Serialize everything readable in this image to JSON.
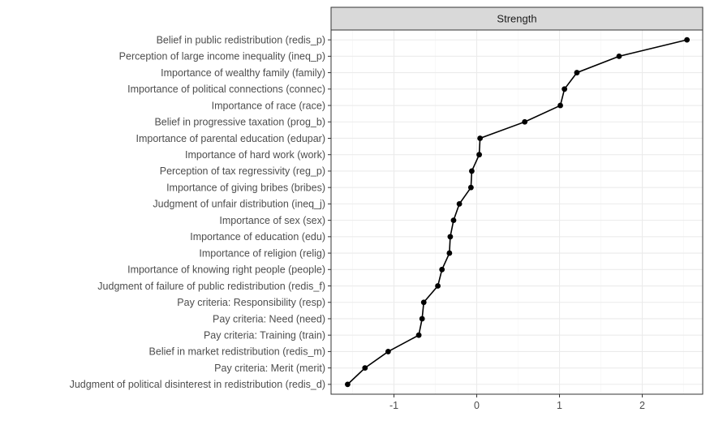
{
  "chart_data": {
    "type": "line",
    "facet_label": "Strength",
    "xlabel": "",
    "ylabel": "",
    "xlim": [
      -1.76,
      2.73
    ],
    "x_ticks": [
      -1,
      0,
      1,
      2
    ],
    "grid": true,
    "categories": [
      "Belief in public redistribution (redis_p)",
      "Perception of large income inequality (ineq_p)",
      "Importance of wealthy family (family)",
      "Importance of political connections (connec)",
      "Importance of race (race)",
      "Belief in progressive taxation (prog_b)",
      "Importance of parental education (edupar)",
      "Importance of hard work (work)",
      "Perception of tax regressivity (reg_p)",
      "Importance of giving bribes (bribes)",
      "Judgment of unfair distribution (ineq_j)",
      "Importance of sex (sex)",
      "Importance of education (edu)",
      "Importance of religion (relig)",
      "Importance of knowing right people (people)",
      "Judgment of failure of public redistribution (redis_f)",
      "Pay criteria: Responsibility (resp)",
      "Pay criteria: Need (need)",
      "Pay criteria: Training (train)",
      "Belief in market redistribution (redis_m)",
      "Pay criteria: Merit (merit)",
      "Judgment of political disinterest in redistribution (redis_d)"
    ],
    "values": [
      2.54,
      1.72,
      1.21,
      1.06,
      1.01,
      0.58,
      0.04,
      0.03,
      -0.06,
      -0.07,
      -0.21,
      -0.28,
      -0.32,
      -0.33,
      -0.42,
      -0.47,
      -0.64,
      -0.66,
      -0.7,
      -1.07,
      -1.35,
      -1.56
    ],
    "colors": {
      "panel_bg": "#ffffff",
      "panel_border": "#333333",
      "grid_major": "#ebebeb",
      "grid_minor": "#f5f5f5",
      "strip_bg": "#d9d9d9",
      "line": "#000000",
      "point": "#000000"
    }
  }
}
